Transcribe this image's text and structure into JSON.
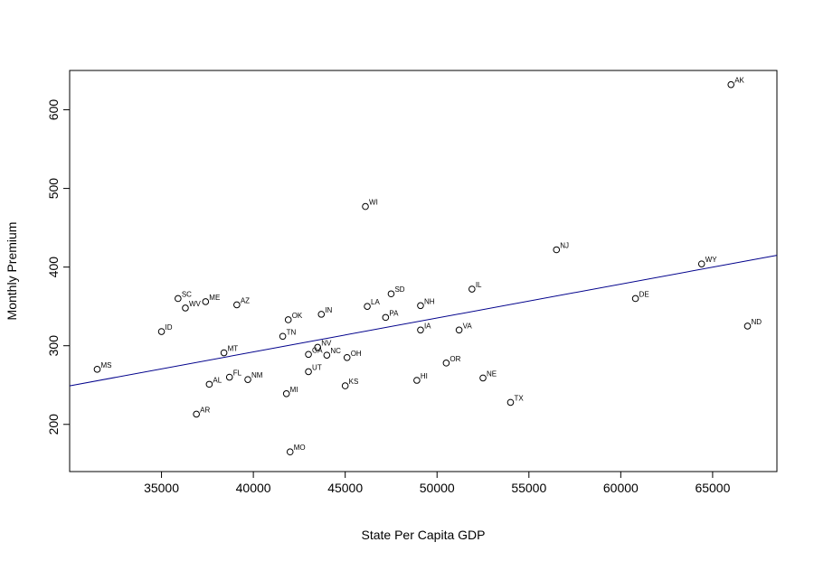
{
  "chart_data": {
    "type": "scatter",
    "title": "",
    "xlabel": "State Per Capita GDP",
    "ylabel": "Monthly Premium",
    "xlim": [
      30000,
      68500
    ],
    "ylim": [
      140,
      650
    ],
    "x_ticks": [
      35000,
      40000,
      45000,
      50000,
      55000,
      60000,
      65000
    ],
    "y_ticks": [
      200,
      300,
      400,
      500,
      600
    ],
    "grid": false,
    "legend": "none",
    "point_color": "#000000",
    "fit_line": {
      "color": "#00008b",
      "x": [
        30000,
        68500
      ],
      "y": [
        249,
        415
      ]
    },
    "points": [
      {
        "label": "AK",
        "x": 66000,
        "y": 632
      },
      {
        "label": "WI",
        "x": 46100,
        "y": 477
      },
      {
        "label": "NJ",
        "x": 56500,
        "y": 422
      },
      {
        "label": "WY",
        "x": 64400,
        "y": 404
      },
      {
        "label": "IL",
        "x": 51900,
        "y": 372
      },
      {
        "label": "SD",
        "x": 47500,
        "y": 366
      },
      {
        "label": "SC",
        "x": 35900,
        "y": 360
      },
      {
        "label": "DE",
        "x": 60800,
        "y": 360
      },
      {
        "label": "ME",
        "x": 37400,
        "y": 356
      },
      {
        "label": "AZ",
        "x": 39100,
        "y": 352
      },
      {
        "label": "LA",
        "x": 46200,
        "y": 350
      },
      {
        "label": "NH",
        "x": 49100,
        "y": 351
      },
      {
        "label": "WV",
        "x": 36300,
        "y": 348
      },
      {
        "label": "IN",
        "x": 43700,
        "y": 340
      },
      {
        "label": "PA",
        "x": 47200,
        "y": 336
      },
      {
        "label": "OK",
        "x": 41900,
        "y": 333
      },
      {
        "label": "ND",
        "x": 66900,
        "y": 325
      },
      {
        "label": "IA",
        "x": 49100,
        "y": 320
      },
      {
        "label": "VA",
        "x": 51200,
        "y": 320
      },
      {
        "label": "ID",
        "x": 35000,
        "y": 318
      },
      {
        "label": "TN",
        "x": 41600,
        "y": 312
      },
      {
        "label": "NV",
        "x": 43500,
        "y": 298
      },
      {
        "label": "MT",
        "x": 38400,
        "y": 291
      },
      {
        "label": "GA",
        "x": 43000,
        "y": 289
      },
      {
        "label": "NC",
        "x": 44000,
        "y": 288
      },
      {
        "label": "OH",
        "x": 45100,
        "y": 285
      },
      {
        "label": "OR",
        "x": 50500,
        "y": 278
      },
      {
        "label": "MS",
        "x": 31500,
        "y": 270
      },
      {
        "label": "UT",
        "x": 43000,
        "y": 267
      },
      {
        "label": "FL",
        "x": 38700,
        "y": 260
      },
      {
        "label": "NE",
        "x": 52500,
        "y": 259
      },
      {
        "label": "NM",
        "x": 39700,
        "y": 257
      },
      {
        "label": "HI",
        "x": 48900,
        "y": 256
      },
      {
        "label": "AL",
        "x": 37600,
        "y": 251
      },
      {
        "label": "KS",
        "x": 45000,
        "y": 249
      },
      {
        "label": "MI",
        "x": 41800,
        "y": 239
      },
      {
        "label": "TX",
        "x": 54000,
        "y": 228
      },
      {
        "label": "AR",
        "x": 36900,
        "y": 213
      },
      {
        "label": "MO",
        "x": 42000,
        "y": 165
      }
    ]
  }
}
